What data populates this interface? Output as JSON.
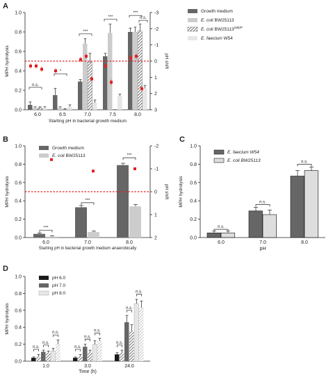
{
  "colors": {
    "dark": "#666666",
    "mid": "#8c8c8c",
    "light": "#cccccc",
    "lighter": "#e6e6e6",
    "black": "#1a1a1a",
    "red": "#e02020"
  },
  "chart_data": [
    {
      "panel": "A",
      "type": "bar",
      "xlabel": "Starting pH in bacterial growth medium",
      "ylabel": "MPH hydrolysis",
      "ylabel_right": "pH shift",
      "ylim": [
        0,
        1.0
      ],
      "yticks": [
        "0.0",
        "0.2",
        "0.4",
        "0.6",
        "0.8",
        "1.0"
      ],
      "ylim_right": [
        3,
        -3
      ],
      "yticks_right": [
        "3",
        "2",
        "1",
        "0",
        "-1",
        "-2",
        "-3"
      ],
      "categories": [
        "6.0",
        "6.5",
        "7.0",
        "7.5",
        "8.0"
      ],
      "series": [
        {
          "name": "Growth medium",
          "style": "dark",
          "values": [
            0.05,
            0.15,
            0.29,
            0.55,
            0.8
          ],
          "errors": [
            0.03,
            0.07,
            0.02,
            0.03,
            0.04
          ]
        },
        {
          "name": "E. coli BW25113",
          "style": "light",
          "values": [
            0.02,
            0.02,
            0.68,
            0.79,
            0.8
          ],
          "errors": [
            0.01,
            0.01,
            0.05,
            0.09,
            0.05
          ]
        },
        {
          "name": "E. coli BW25113",
          "sup": "ΔatpP",
          "style": "hatch",
          "values": [
            0.02,
            0.0,
            0.49,
            0.0,
            0.81
          ],
          "errors": [
            0.01,
            0.01,
            0.09,
            0.0,
            0.07
          ]
        },
        {
          "name": "E. faecium W54",
          "style": "lighter",
          "values": [
            0.02,
            0.03,
            0.07,
            0.14,
            0.22
          ],
          "errors": [
            0.01,
            0.02,
            0.03,
            0.02,
            0.03
          ]
        }
      ],
      "ph_shift": [
        {
          "category": "6.0",
          "values": [
            0.3,
            0.3,
            0.5
          ]
        },
        {
          "category": "6.5",
          "values": [
            0.6
          ]
        },
        {
          "category": "7.0",
          "values": [
            -0.1,
            -0.3,
            1.1
          ]
        },
        {
          "category": "7.5",
          "values": [
            0.3,
            1.3
          ]
        },
        {
          "category": "8.0",
          "values": [
            -0.2,
            -0.3,
            1.7
          ]
        }
      ],
      "significance": [
        {
          "category": "6.0",
          "label": "n.s."
        },
        {
          "category": "6.5",
          "label": "*"
        },
        {
          "category": "7.0",
          "label": "***"
        },
        {
          "category": "7.5",
          "label": "***"
        },
        {
          "category": "8.0",
          "label": "***"
        },
        {
          "category": "8.0",
          "label": "n.s."
        }
      ],
      "reference_line": 0.5
    },
    {
      "panel": "B",
      "type": "bar",
      "xlabel": "Starting pH in bacterial growth medium anaerobically",
      "ylabel": "MPH hydrolysis",
      "ylabel_right": "pH shift",
      "ylim": [
        0,
        1.0
      ],
      "yticks": [
        "0.0",
        "0.2",
        "0.4",
        "0.6",
        "0.8",
        "1.0"
      ],
      "ylim_right": [
        2,
        -2
      ],
      "yticks_right": [
        "2",
        "1",
        "0",
        "-1",
        "-2"
      ],
      "categories": [
        "6.0",
        "7.0",
        "8.0"
      ],
      "series": [
        {
          "name": "Growth medium",
          "style": "dark",
          "values": [
            0.04,
            0.33,
            0.79
          ],
          "errors": [
            0.01,
            0.02,
            0.02
          ]
        },
        {
          "name": "E. coli BW25113",
          "style": "light",
          "values": [
            0.01,
            0.06,
            0.34
          ],
          "errors": [
            0.01,
            0.01,
            0.02
          ]
        }
      ],
      "ph_shift": [
        {
          "category": "6.0",
          "values": [
            -1.4
          ]
        },
        {
          "category": "7.0",
          "values": [
            -0.9
          ]
        },
        {
          "category": "8.0",
          "values": [
            -1.0
          ]
        }
      ],
      "significance": [
        {
          "category": "6.0",
          "label": "***"
        },
        {
          "category": "7.0",
          "label": "***"
        },
        {
          "category": "8.0",
          "label": "***"
        }
      ],
      "reference_line": 0.5
    },
    {
      "panel": "C",
      "type": "bar",
      "xlabel": "pH",
      "ylabel": "MPH hydrolysis",
      "ylim": [
        0,
        1.0
      ],
      "yticks": [
        "0.0",
        "0.2",
        "0.4",
        "0.6",
        "0.8",
        "1.0"
      ],
      "categories": [
        "6.0",
        "7.0",
        "8.0"
      ],
      "series": [
        {
          "name": "E. faecium W54",
          "style": "dark",
          "values": [
            0.05,
            0.29,
            0.67
          ],
          "errors": [
            0.02,
            0.04,
            0.06
          ]
        },
        {
          "name": "E. coli BW25113",
          "style": "light",
          "values": [
            0.05,
            0.25,
            0.73
          ],
          "errors": [
            0.02,
            0.05,
            0.04
          ]
        }
      ],
      "significance": [
        {
          "category": "6.0",
          "label": "n.s."
        },
        {
          "category": "7.0",
          "label": "n.s."
        },
        {
          "category": "8.0",
          "label": "n.s."
        }
      ]
    },
    {
      "panel": "D",
      "type": "bar",
      "xlabel": "Time (h)",
      "ylabel": "MPH hydrolysis",
      "ylim": [
        0,
        1.0
      ],
      "yticks": [
        "0.0",
        "0.2",
        "0.4",
        "0.6",
        "0.8",
        "1.0"
      ],
      "categories": [
        "1.0",
        "3.0",
        "24.0"
      ],
      "series": [
        {
          "name": "pH 6.0",
          "style": "black",
          "values": [
            0.04,
            0.04,
            0.08
          ],
          "errors": [
            0.01,
            0.01,
            0.02
          ]
        },
        {
          "name": "",
          "style": "hatch",
          "values": [
            0.06,
            0.06,
            0.1
          ],
          "errors": [
            0.02,
            0.02,
            0.03
          ]
        },
        {
          "name": "pH 7.0",
          "style": "dark",
          "values": [
            0.11,
            0.17,
            0.46
          ],
          "errors": [
            0.02,
            0.03,
            0.08
          ]
        },
        {
          "name": "",
          "style": "hatch",
          "values": [
            0.1,
            0.11,
            0.36
          ],
          "errors": [
            0.02,
            0.02,
            0.07
          ]
        },
        {
          "name": "pH 8.0",
          "style": "lighter",
          "values": [
            0.12,
            0.2,
            0.68
          ],
          "errors": [
            0.03,
            0.04,
            0.05
          ]
        },
        {
          "name": "",
          "style": "hatch",
          "values": [
            0.2,
            0.24,
            0.63
          ],
          "errors": [
            0.05,
            0.03,
            0.08
          ]
        }
      ],
      "significance_label": "n.s."
    }
  ]
}
